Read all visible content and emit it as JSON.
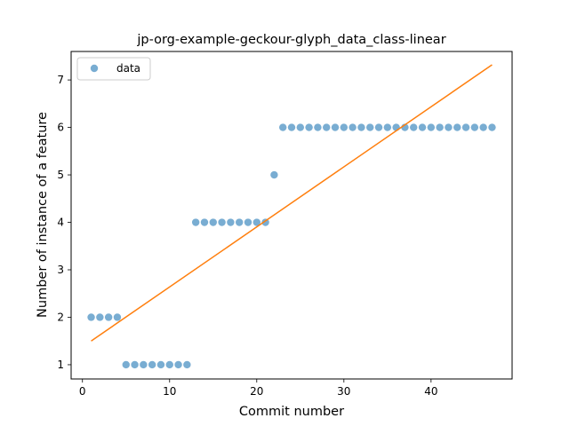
{
  "chart_data": {
    "type": "scatter",
    "title": "jp-org-example-geckour-glyph_data_class-linear",
    "xlabel": "Commit number",
    "ylabel": "Number of instance of a feature",
    "xlim": [
      -1.3,
      49.3
    ],
    "ylim": [
      0.7,
      7.6
    ],
    "xticks": [
      0,
      10,
      20,
      30,
      40
    ],
    "yticks": [
      1,
      2,
      3,
      4,
      5,
      6,
      7
    ],
    "grid": false,
    "legend": {
      "position": "top-left",
      "entries": [
        "data"
      ]
    },
    "colors": {
      "data": "#1f77b4",
      "fit": "#ff7f0e"
    },
    "series": [
      {
        "name": "data",
        "type": "scatter",
        "x": [
          1,
          2,
          3,
          4,
          5,
          6,
          7,
          8,
          9,
          10,
          11,
          12,
          13,
          14,
          15,
          16,
          17,
          18,
          19,
          20,
          21,
          22,
          23,
          24,
          25,
          26,
          27,
          28,
          29,
          30,
          31,
          32,
          33,
          34,
          35,
          36,
          37,
          38,
          39,
          40,
          41,
          42,
          43,
          44,
          45,
          46,
          47
        ],
        "y": [
          2,
          2,
          2,
          2,
          1,
          1,
          1,
          1,
          1,
          1,
          1,
          1,
          4,
          4,
          4,
          4,
          4,
          4,
          4,
          4,
          4,
          5,
          6,
          6,
          6,
          6,
          6,
          6,
          6,
          6,
          6,
          6,
          6,
          6,
          6,
          6,
          6,
          6,
          6,
          6,
          6,
          6,
          6,
          6,
          6,
          6,
          6
        ]
      },
      {
        "type": "line",
        "x": [
          1,
          47
        ],
        "y": [
          1.5,
          7.32
        ]
      }
    ]
  }
}
